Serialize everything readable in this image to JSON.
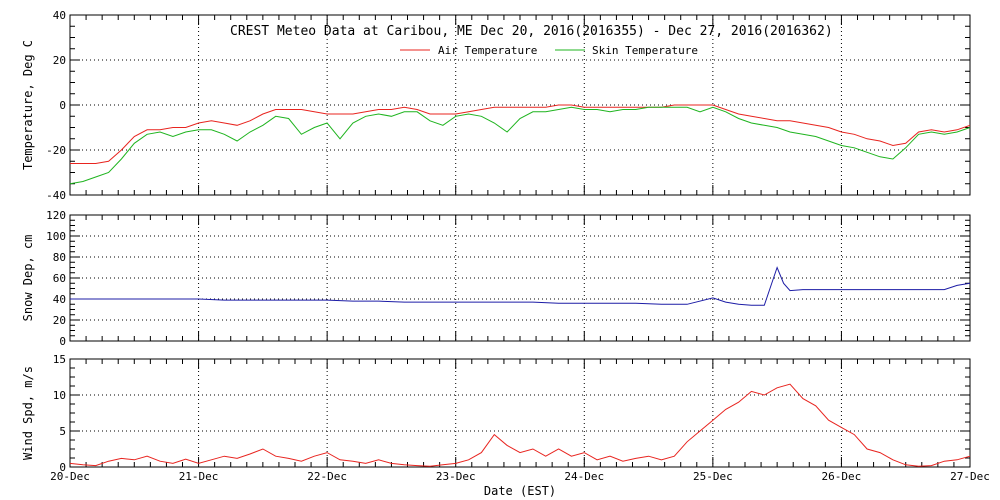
{
  "chart_data": [
    {
      "type": "line",
      "title": "CREST Meteo Data at Caribou, ME   Dec 20, 2016(2016355) - Dec 27, 2016(2016362)",
      "xlabel": "",
      "ylabel": "Temperature, Deg C",
      "ylim": [
        -40,
        40
      ],
      "yticks": [
        "-40",
        "-20",
        "0",
        "20",
        "40"
      ],
      "legend_position": "top-center",
      "grid": true,
      "series": [
        {
          "name": "Air Temperature",
          "color": "#e8241f",
          "x": [
            0.0,
            0.1,
            0.2,
            0.3,
            0.4,
            0.5,
            0.6,
            0.7,
            0.8,
            0.9,
            1.0,
            1.1,
            1.2,
            1.3,
            1.4,
            1.5,
            1.6,
            1.7,
            1.8,
            1.9,
            2.0,
            2.1,
            2.2,
            2.3,
            2.4,
            2.5,
            2.6,
            2.7,
            2.8,
            2.9,
            3.0,
            3.1,
            3.2,
            3.3,
            3.4,
            3.5,
            3.6,
            3.7,
            3.8,
            3.9,
            4.0,
            4.1,
            4.2,
            4.3,
            4.4,
            4.5,
            4.6,
            4.7,
            4.8,
            4.9,
            5.0,
            5.1,
            5.2,
            5.3,
            5.4,
            5.5,
            5.6,
            5.7,
            5.8,
            5.9,
            6.0,
            6.1,
            6.2,
            6.3,
            6.4,
            6.5,
            6.6,
            6.7,
            6.8,
            6.9,
            7.0
          ],
          "y": [
            -26,
            -26,
            -26,
            -25,
            -20,
            -14,
            -11,
            -11,
            -10,
            -10,
            -8,
            -7,
            -8,
            -9,
            -7,
            -4,
            -2,
            -2,
            -2,
            -3,
            -4,
            -4,
            -4,
            -3,
            -2,
            -2,
            -1,
            -2,
            -4,
            -4,
            -4,
            -3,
            -2,
            -1,
            -1,
            -1,
            -1,
            -1,
            0,
            0,
            -1,
            -1,
            -1,
            -1,
            -1,
            -1,
            -1,
            0,
            0,
            0,
            0,
            -2,
            -4,
            -5,
            -6,
            -7,
            -7,
            -8,
            -9,
            -10,
            -12,
            -13,
            -15,
            -16,
            -18,
            -17,
            -12,
            -11,
            -12,
            -11,
            -9
          ]
        },
        {
          "name": "Skin Temperature",
          "color": "#1fb41f",
          "x": [
            0.0,
            0.1,
            0.2,
            0.3,
            0.4,
            0.5,
            0.6,
            0.7,
            0.8,
            0.9,
            1.0,
            1.1,
            1.2,
            1.3,
            1.4,
            1.5,
            1.6,
            1.7,
            1.8,
            1.9,
            2.0,
            2.1,
            2.2,
            2.3,
            2.4,
            2.5,
            2.6,
            2.7,
            2.8,
            2.9,
            3.0,
            3.1,
            3.2,
            3.3,
            3.4,
            3.5,
            3.6,
            3.7,
            3.8,
            3.9,
            4.0,
            4.1,
            4.2,
            4.3,
            4.4,
            4.5,
            4.6,
            4.7,
            4.8,
            4.9,
            5.0,
            5.1,
            5.2,
            5.3,
            5.4,
            5.5,
            5.6,
            5.7,
            5.8,
            5.9,
            6.0,
            6.1,
            6.2,
            6.3,
            6.4,
            6.5,
            6.6,
            6.7,
            6.8,
            6.9,
            7.0
          ],
          "y": [
            -35,
            -34,
            -32,
            -30,
            -24,
            -17,
            -13,
            -12,
            -14,
            -12,
            -11,
            -11,
            -13,
            -16,
            -12,
            -9,
            -5,
            -6,
            -13,
            -10,
            -8,
            -15,
            -8,
            -5,
            -4,
            -5,
            -3,
            -3,
            -7,
            -9,
            -5,
            -4,
            -5,
            -8,
            -12,
            -6,
            -3,
            -3,
            -2,
            -1,
            -2,
            -2,
            -3,
            -2,
            -2,
            -1,
            -1,
            -1,
            -1,
            -3,
            -1,
            -3,
            -6,
            -8,
            -9,
            -10,
            -12,
            -13,
            -14,
            -16,
            -18,
            -19,
            -21,
            -23,
            -24,
            -19,
            -13,
            -12,
            -13,
            -12,
            -10
          ]
        }
      ]
    },
    {
      "type": "line",
      "title": "",
      "xlabel": "",
      "ylabel": "Snow Dep, cm",
      "ylim": [
        0,
        120
      ],
      "yticks": [
        "0",
        "20",
        "40",
        "60",
        "80",
        "100",
        "120"
      ],
      "grid": true,
      "series": [
        {
          "color": "#1c1ca6",
          "x": [
            0.0,
            0.2,
            0.4,
            0.6,
            0.8,
            1.0,
            1.2,
            1.4,
            1.6,
            1.8,
            2.0,
            2.2,
            2.4,
            2.6,
            2.8,
            3.0,
            3.2,
            3.4,
            3.6,
            3.8,
            4.0,
            4.2,
            4.4,
            4.6,
            4.8,
            5.0,
            5.1,
            5.2,
            5.3,
            5.4,
            5.45,
            5.5,
            5.55,
            5.6,
            5.7,
            5.8,
            6.0,
            6.2,
            6.4,
            6.6,
            6.8,
            6.9,
            7.0
          ],
          "y": [
            40,
            40,
            40,
            40,
            40,
            40,
            39,
            39,
            39,
            39,
            39,
            38,
            38,
            37,
            37,
            37,
            37,
            37,
            37,
            36,
            36,
            36,
            36,
            35,
            35,
            41,
            37,
            35,
            34,
            34,
            52,
            70,
            55,
            48,
            49,
            49,
            49,
            49,
            49,
            49,
            49,
            53,
            55
          ]
        }
      ]
    },
    {
      "type": "line",
      "title": "",
      "xlabel": "Date (EST)",
      "ylabel": "Wind Spd, m/s",
      "ylim": [
        0,
        15
      ],
      "yticks": [
        "0",
        "5",
        "10",
        "15"
      ],
      "xticks": [
        "20-Dec",
        "21-Dec",
        "22-Dec",
        "23-Dec",
        "24-Dec",
        "25-Dec",
        "26-Dec",
        "27-Dec"
      ],
      "grid": true,
      "series": [
        {
          "color": "#e8241f",
          "x": [
            0.0,
            0.1,
            0.2,
            0.3,
            0.4,
            0.5,
            0.6,
            0.7,
            0.8,
            0.9,
            1.0,
            1.1,
            1.2,
            1.3,
            1.4,
            1.5,
            1.6,
            1.7,
            1.8,
            1.9,
            2.0,
            2.1,
            2.2,
            2.3,
            2.4,
            2.5,
            2.6,
            2.7,
            2.8,
            2.9,
            3.0,
            3.1,
            3.2,
            3.3,
            3.4,
            3.5,
            3.6,
            3.7,
            3.8,
            3.9,
            4.0,
            4.1,
            4.2,
            4.3,
            4.4,
            4.5,
            4.6,
            4.7,
            4.8,
            4.9,
            5.0,
            5.1,
            5.2,
            5.3,
            5.4,
            5.5,
            5.6,
            5.7,
            5.8,
            5.9,
            6.0,
            6.1,
            6.2,
            6.3,
            6.4,
            6.5,
            6.6,
            6.7,
            6.8,
            6.9,
            7.0
          ],
          "y": [
            0.5,
            0.3,
            0.2,
            0.8,
            1.2,
            1.0,
            1.5,
            0.8,
            0.5,
            1.1,
            0.5,
            1.0,
            1.5,
            1.2,
            1.8,
            2.5,
            1.5,
            1.2,
            0.8,
            1.5,
            2.0,
            1.0,
            0.8,
            0.5,
            1.0,
            0.5,
            0.3,
            0.2,
            0.1,
            0.3,
            0.5,
            1.0,
            2.0,
            4.5,
            3.0,
            2.0,
            2.5,
            1.5,
            2.5,
            1.5,
            2.0,
            1.0,
            1.5,
            0.8,
            1.2,
            1.5,
            1.0,
            1.5,
            3.5,
            5.0,
            6.5,
            8.0,
            9.0,
            10.5,
            10.0,
            11.0,
            11.5,
            9.5,
            8.5,
            6.5,
            5.5,
            4.5,
            2.5,
            2.0,
            1.0,
            0.3,
            0.1,
            0.2,
            0.8,
            1.0,
            1.5
          ]
        }
      ]
    }
  ]
}
